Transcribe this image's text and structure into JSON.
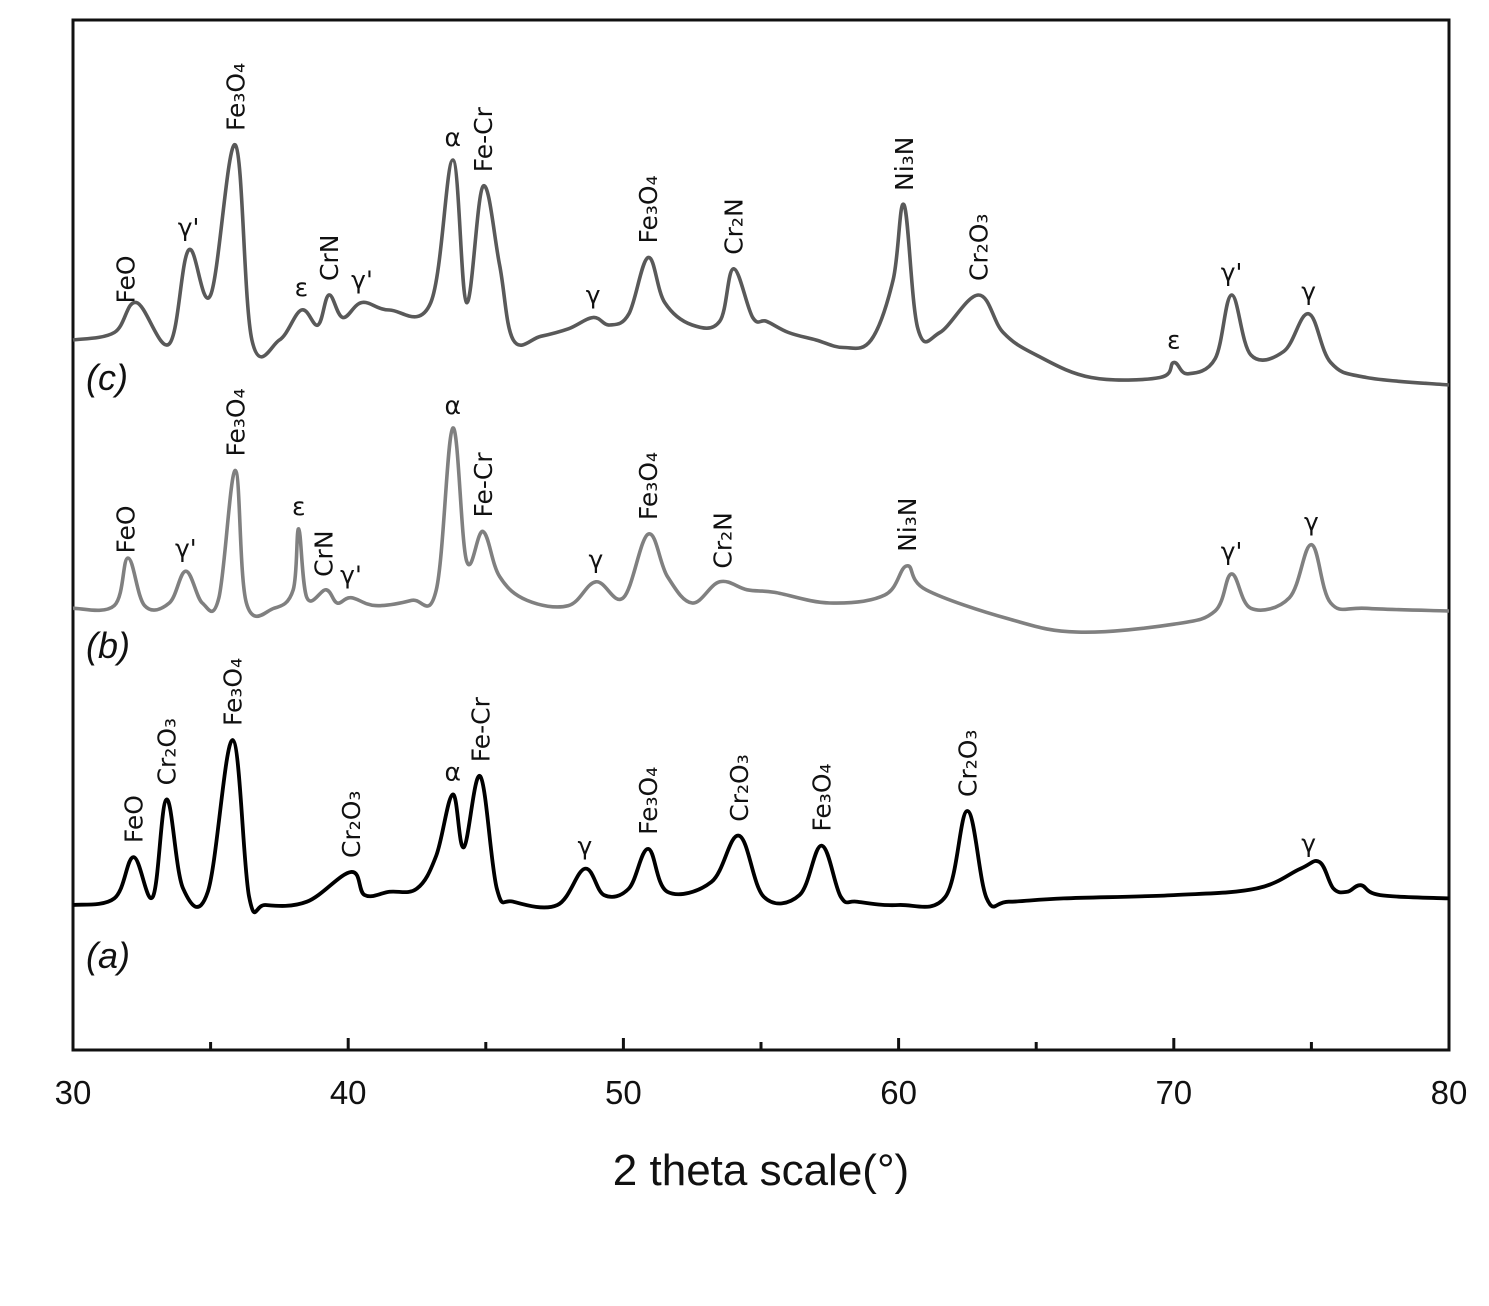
{
  "chart_data": {
    "type": "line",
    "title": "",
    "xlabel": "2 theta scale(°)",
    "ylabel": "",
    "xlim": [
      30,
      80
    ],
    "x_ticks": [
      30,
      40,
      50,
      60,
      70,
      80
    ],
    "x_tick_labels": [
      "30",
      "40",
      "50",
      "60",
      "70",
      "80"
    ],
    "grid": false,
    "legend": "none",
    "series": [
      {
        "name": "(c)",
        "color": "#595959",
        "baseline": 0.4,
        "points": [
          [
            30,
            0.4
          ],
          [
            31.5,
            0.42
          ],
          [
            32.3,
            0.5
          ],
          [
            33.5,
            0.39
          ],
          [
            34.2,
            0.64
          ],
          [
            35.0,
            0.52
          ],
          [
            35.9,
            0.92
          ],
          [
            36.5,
            0.4
          ],
          [
            37.5,
            0.4
          ],
          [
            38.3,
            0.48
          ],
          [
            38.9,
            0.44
          ],
          [
            39.3,
            0.52
          ],
          [
            39.8,
            0.46
          ],
          [
            40.5,
            0.5
          ],
          [
            41.5,
            0.48
          ],
          [
            43,
            0.5
          ],
          [
            43.8,
            0.88
          ],
          [
            44.3,
            0.5
          ],
          [
            44.9,
            0.81
          ],
          [
            45.5,
            0.6
          ],
          [
            46,
            0.4
          ],
          [
            47,
            0.41
          ],
          [
            48,
            0.43
          ],
          [
            48.9,
            0.46
          ],
          [
            49.5,
            0.44
          ],
          [
            50.2,
            0.47
          ],
          [
            50.9,
            0.62
          ],
          [
            51.5,
            0.5
          ],
          [
            52.5,
            0.44
          ],
          [
            53.5,
            0.45
          ],
          [
            54,
            0.59
          ],
          [
            54.7,
            0.46
          ],
          [
            55.2,
            0.45
          ],
          [
            56,
            0.42
          ],
          [
            57,
            0.4
          ],
          [
            58,
            0.38
          ],
          [
            59,
            0.4
          ],
          [
            59.8,
            0.56
          ],
          [
            60.2,
            0.76
          ],
          [
            60.7,
            0.43
          ],
          [
            61.5,
            0.42
          ],
          [
            62.9,
            0.52
          ],
          [
            63.8,
            0.42
          ],
          [
            65,
            0.36
          ],
          [
            67,
            0.3
          ],
          [
            69.5,
            0.3
          ],
          [
            70,
            0.34
          ],
          [
            70.5,
            0.31
          ],
          [
            71.5,
            0.35
          ],
          [
            72.1,
            0.52
          ],
          [
            72.8,
            0.36
          ],
          [
            74,
            0.37
          ],
          [
            74.9,
            0.47
          ],
          [
            75.7,
            0.34
          ],
          [
            77,
            0.3
          ],
          [
            80,
            0.28
          ]
        ]
      },
      {
        "name": "(b)",
        "color": "#808080",
        "baseline": 0.2,
        "points": [
          [
            30,
            0.18
          ],
          [
            31.5,
            0.19
          ],
          [
            32.0,
            0.37
          ],
          [
            32.6,
            0.19
          ],
          [
            33.5,
            0.2
          ],
          [
            34.1,
            0.32
          ],
          [
            34.7,
            0.2
          ],
          [
            35.3,
            0.22
          ],
          [
            35.9,
            0.7
          ],
          [
            36.3,
            0.2
          ],
          [
            37.3,
            0.18
          ],
          [
            38.0,
            0.25
          ],
          [
            38.2,
            0.48
          ],
          [
            38.5,
            0.22
          ],
          [
            39.2,
            0.25
          ],
          [
            39.6,
            0.2
          ],
          [
            40.1,
            0.22
          ],
          [
            41,
            0.19
          ],
          [
            42.3,
            0.21
          ],
          [
            43.2,
            0.25
          ],
          [
            43.8,
            0.86
          ],
          [
            44.3,
            0.36
          ],
          [
            44.9,
            0.47
          ],
          [
            45.5,
            0.3
          ],
          [
            46.5,
            0.21
          ],
          [
            48,
            0.19
          ],
          [
            49.0,
            0.28
          ],
          [
            50,
            0.22
          ],
          [
            50.9,
            0.46
          ],
          [
            51.6,
            0.3
          ],
          [
            52.5,
            0.2
          ],
          [
            53.5,
            0.28
          ],
          [
            54.5,
            0.25
          ],
          [
            55.5,
            0.24
          ],
          [
            57.5,
            0.2
          ],
          [
            59.5,
            0.23
          ],
          [
            60.3,
            0.34
          ],
          [
            61,
            0.25
          ],
          [
            64,
            0.14
          ],
          [
            66.5,
            0.09
          ],
          [
            70,
            0.12
          ],
          [
            71.5,
            0.17
          ],
          [
            72.1,
            0.31
          ],
          [
            72.8,
            0.18
          ],
          [
            74.2,
            0.22
          ],
          [
            75.0,
            0.42
          ],
          [
            75.7,
            0.2
          ],
          [
            77,
            0.18
          ],
          [
            80,
            0.17
          ]
        ]
      },
      {
        "name": "(a)",
        "color": "#000000",
        "baseline": 0.0,
        "points": [
          [
            30,
            0.0
          ],
          [
            31.5,
            0.04
          ],
          [
            32.2,
            0.29
          ],
          [
            32.9,
            0.05
          ],
          [
            33.4,
            0.64
          ],
          [
            34.0,
            0.1
          ],
          [
            34.9,
            0.08
          ],
          [
            35.8,
            1.0
          ],
          [
            36.4,
            0.05
          ],
          [
            37,
            0.0
          ],
          [
            38.5,
            0.02
          ],
          [
            40.1,
            0.2
          ],
          [
            40.6,
            0.06
          ],
          [
            41.5,
            0.08
          ],
          [
            42.5,
            0.1
          ],
          [
            43.2,
            0.3
          ],
          [
            43.8,
            0.67
          ],
          [
            44.2,
            0.35
          ],
          [
            44.8,
            0.78
          ],
          [
            45.4,
            0.1
          ],
          [
            46,
            0.02
          ],
          [
            47.6,
            0.0
          ],
          [
            48.6,
            0.22
          ],
          [
            49.3,
            0.06
          ],
          [
            50.2,
            0.1
          ],
          [
            50.9,
            0.34
          ],
          [
            51.6,
            0.08
          ],
          [
            53.2,
            0.14
          ],
          [
            54.2,
            0.42
          ],
          [
            55.1,
            0.05
          ],
          [
            56.4,
            0.06
          ],
          [
            57.2,
            0.36
          ],
          [
            57.9,
            0.05
          ],
          [
            58.5,
            0.02
          ],
          [
            60,
            0.0
          ],
          [
            61.7,
            0.05
          ],
          [
            62.5,
            0.57
          ],
          [
            63.2,
            0.04
          ],
          [
            64,
            0.02
          ],
          [
            66,
            0.04
          ],
          [
            70,
            0.06
          ],
          [
            73,
            0.1
          ],
          [
            74.6,
            0.22
          ],
          [
            75.3,
            0.26
          ],
          [
            75.8,
            0.1
          ],
          [
            76.3,
            0.08
          ],
          [
            76.8,
            0.12
          ],
          [
            77.5,
            0.06
          ],
          [
            80,
            0.04
          ]
        ]
      }
    ],
    "trace_labels": [
      {
        "series": "(c)",
        "text": "(c)"
      },
      {
        "series": "(b)",
        "text": "(b)"
      },
      {
        "series": "(a)",
        "text": "(a)"
      }
    ],
    "peak_labels": [
      {
        "series": "(c)",
        "x": 31.9,
        "text": "FeO"
      },
      {
        "series": "(c)",
        "x": 34.2,
        "text": "γ'"
      },
      {
        "series": "(c)",
        "x": 35.9,
        "text": "Fe₃O₄"
      },
      {
        "series": "(c)",
        "x": 38.3,
        "text": "ε"
      },
      {
        "series": "(c)",
        "x": 39.3,
        "text": "CrN"
      },
      {
        "series": "(c)",
        "x": 40.5,
        "text": "γ'"
      },
      {
        "series": "(c)",
        "x": 43.8,
        "text": "α"
      },
      {
        "series": "(c)",
        "x": 44.9,
        "text": "Fe-Cr"
      },
      {
        "series": "(c)",
        "x": 48.9,
        "text": "γ"
      },
      {
        "series": "(c)",
        "x": 50.9,
        "text": "Fe₃O₄"
      },
      {
        "series": "(c)",
        "x": 54.0,
        "text": "Cr₂N"
      },
      {
        "series": "(c)",
        "x": 60.2,
        "text": "Ni₃N"
      },
      {
        "series": "(c)",
        "x": 62.9,
        "text": "Cr₂O₃"
      },
      {
        "series": "(c)",
        "x": 70.0,
        "text": "ε"
      },
      {
        "series": "(c)",
        "x": 72.1,
        "text": "γ'"
      },
      {
        "series": "(c)",
        "x": 74.9,
        "text": "γ"
      },
      {
        "series": "(b)",
        "x": 31.9,
        "text": "FeO"
      },
      {
        "series": "(b)",
        "x": 34.1,
        "text": "γ'"
      },
      {
        "series": "(b)",
        "x": 35.9,
        "text": "Fe₃O₄"
      },
      {
        "series": "(b)",
        "x": 38.2,
        "text": "ε"
      },
      {
        "series": "(b)",
        "x": 39.1,
        "text": "CrN"
      },
      {
        "series": "(b)",
        "x": 40.1,
        "text": "γ'"
      },
      {
        "series": "(b)",
        "x": 43.8,
        "text": "α"
      },
      {
        "series": "(b)",
        "x": 44.9,
        "text": "Fe-Cr"
      },
      {
        "series": "(b)",
        "x": 49.0,
        "text": "γ"
      },
      {
        "series": "(b)",
        "x": 50.9,
        "text": "Fe₃O₄"
      },
      {
        "series": "(b)",
        "x": 53.6,
        "text": "Cr₂N"
      },
      {
        "series": "(b)",
        "x": 60.3,
        "text": "Ni₃N"
      },
      {
        "series": "(b)",
        "x": 72.1,
        "text": "γ'"
      },
      {
        "series": "(b)",
        "x": 75.0,
        "text": "γ"
      },
      {
        "series": "(a)",
        "x": 32.2,
        "text": "FeO"
      },
      {
        "series": "(a)",
        "x": 33.4,
        "text": "Cr₂O₃"
      },
      {
        "series": "(a)",
        "x": 35.8,
        "text": "Fe₃O₄"
      },
      {
        "series": "(a)",
        "x": 40.1,
        "text": "Cr₂O₃"
      },
      {
        "series": "(a)",
        "x": 43.8,
        "text": "α"
      },
      {
        "series": "(a)",
        "x": 44.8,
        "text": "Fe-Cr"
      },
      {
        "series": "(a)",
        "x": 48.6,
        "text": "γ"
      },
      {
        "series": "(a)",
        "x": 50.9,
        "text": "Fe₃O₄"
      },
      {
        "series": "(a)",
        "x": 54.2,
        "text": "Cr₂O₃"
      },
      {
        "series": "(a)",
        "x": 57.2,
        "text": "Fe₃O₄"
      },
      {
        "series": "(a)",
        "x": 62.5,
        "text": "Cr₂O₃"
      },
      {
        "series": "(a)",
        "x": 74.9,
        "text": "γ"
      }
    ]
  }
}
